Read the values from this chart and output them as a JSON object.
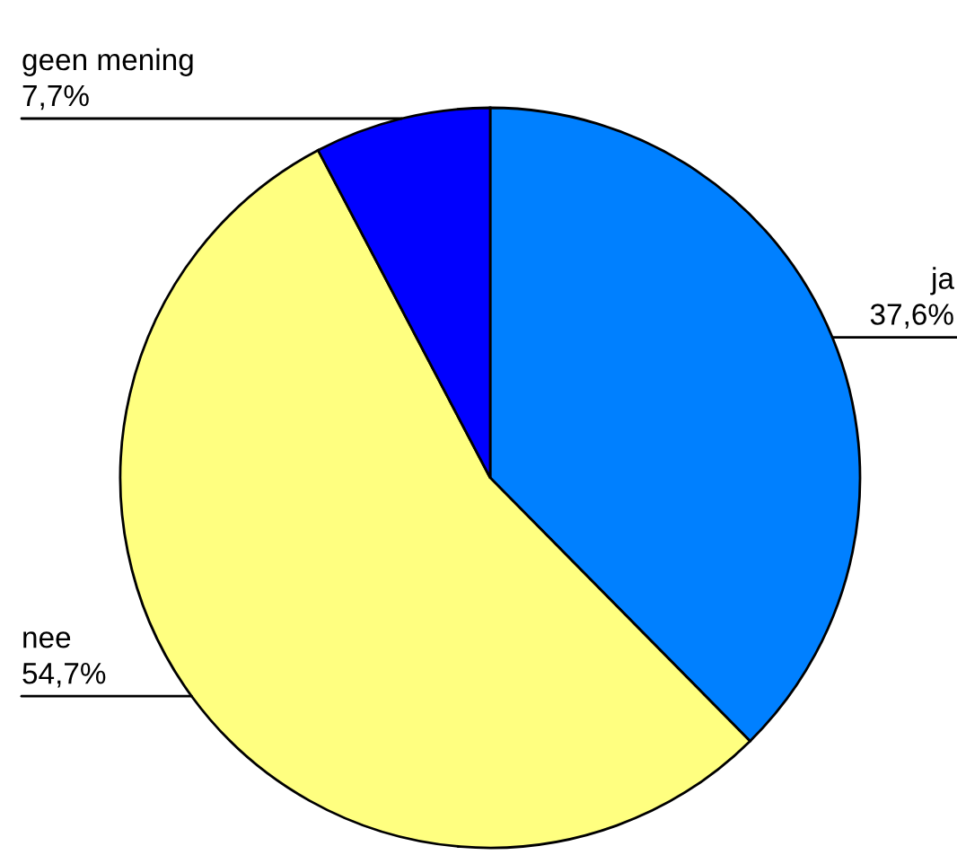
{
  "chart_data": {
    "type": "pie",
    "categories": [
      "ja",
      "nee",
      "geen mening"
    ],
    "values": [
      37.6,
      54.7,
      7.7
    ],
    "colors": [
      "#0080ff",
      "#ffff80",
      "#0000ff"
    ],
    "value_labels": [
      "37,6%",
      "54,7%",
      "7,7%"
    ]
  }
}
